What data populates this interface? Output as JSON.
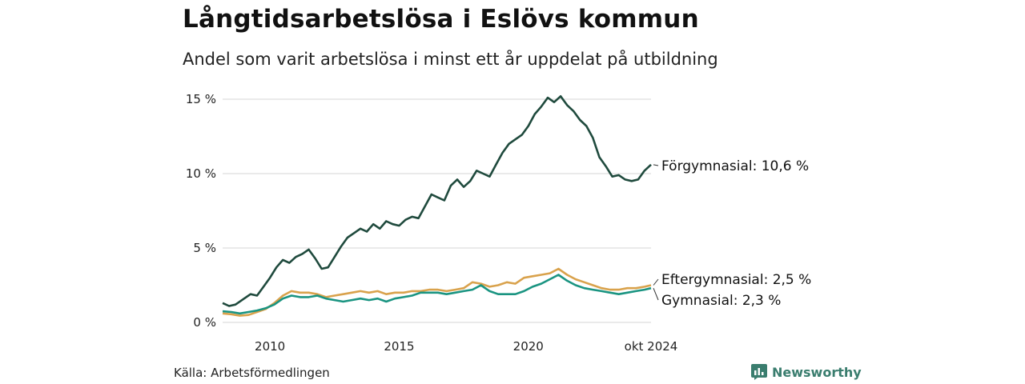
{
  "header": {
    "title": "Långtidsarbetslösa i Eslövs kommun",
    "subtitle": "Andel som varit arbetslösa i minst ett år uppdelat på utbildning"
  },
  "footer": {
    "source": "Källa: Arbetsförmedlingen",
    "brand": "Newsworthy",
    "brand_icon": "bar-chart-logo-icon"
  },
  "colors": {
    "forgymnasial": "#1f4a3d",
    "gymnasial": "#1a9481",
    "eftergymnasial": "#d9a24c",
    "grid": "#dddddd",
    "brand": "#3a7d6e"
  },
  "chart_data": {
    "type": "line",
    "x_start": "2008-03",
    "x_end": "2024-10",
    "ylim": [
      0,
      15
    ],
    "y_ticks": [
      {
        "value": 0,
        "label": "0 %"
      },
      {
        "value": 5,
        "label": "5 %"
      },
      {
        "value": 10,
        "label": "10 %"
      },
      {
        "value": 15,
        "label": "15 %"
      }
    ],
    "x_ticks": [
      {
        "value": "2010-01",
        "label": "2010"
      },
      {
        "value": "2015-01",
        "label": "2015"
      },
      {
        "value": "2020-01",
        "label": "2020"
      },
      {
        "value": "2024-10",
        "label": "okt 2024"
      }
    ],
    "grid": "horizontal",
    "series": [
      {
        "name": "Förgymnasial",
        "end_label": "Förgymnasial: 10,6 %",
        "color": "#1f4a3d",
        "points": [
          [
            "2008-03",
            1.3
          ],
          [
            "2008-06",
            1.1
          ],
          [
            "2008-09",
            1.2
          ],
          [
            "2009-01",
            1.6
          ],
          [
            "2009-04",
            1.9
          ],
          [
            "2009-07",
            1.8
          ],
          [
            "2009-10",
            2.4
          ],
          [
            "2010-01",
            3.0
          ],
          [
            "2010-04",
            3.7
          ],
          [
            "2010-07",
            4.2
          ],
          [
            "2010-10",
            4.0
          ],
          [
            "2011-01",
            4.4
          ],
          [
            "2011-04",
            4.6
          ],
          [
            "2011-07",
            4.9
          ],
          [
            "2011-10",
            4.3
          ],
          [
            "2012-01",
            3.6
          ],
          [
            "2012-04",
            3.7
          ],
          [
            "2012-07",
            4.4
          ],
          [
            "2012-10",
            5.1
          ],
          [
            "2013-01",
            5.7
          ],
          [
            "2013-04",
            6.0
          ],
          [
            "2013-07",
            6.3
          ],
          [
            "2013-10",
            6.1
          ],
          [
            "2014-01",
            6.6
          ],
          [
            "2014-04",
            6.3
          ],
          [
            "2014-07",
            6.8
          ],
          [
            "2014-10",
            6.6
          ],
          [
            "2015-01",
            6.5
          ],
          [
            "2015-04",
            6.9
          ],
          [
            "2015-07",
            7.1
          ],
          [
            "2015-10",
            7.0
          ],
          [
            "2016-01",
            7.8
          ],
          [
            "2016-04",
            8.6
          ],
          [
            "2016-07",
            8.4
          ],
          [
            "2016-10",
            8.2
          ],
          [
            "2017-01",
            9.2
          ],
          [
            "2017-04",
            9.6
          ],
          [
            "2017-07",
            9.1
          ],
          [
            "2017-10",
            9.5
          ],
          [
            "2018-01",
            10.2
          ],
          [
            "2018-04",
            10.0
          ],
          [
            "2018-07",
            9.8
          ],
          [
            "2018-10",
            10.6
          ],
          [
            "2019-01",
            11.4
          ],
          [
            "2019-04",
            12.0
          ],
          [
            "2019-07",
            12.3
          ],
          [
            "2019-10",
            12.6
          ],
          [
            "2020-01",
            13.2
          ],
          [
            "2020-04",
            14.0
          ],
          [
            "2020-07",
            14.5
          ],
          [
            "2020-10",
            15.1
          ],
          [
            "2021-01",
            14.8
          ],
          [
            "2021-04",
            15.2
          ],
          [
            "2021-07",
            14.6
          ],
          [
            "2021-10",
            14.2
          ],
          [
            "2022-01",
            13.6
          ],
          [
            "2022-04",
            13.2
          ],
          [
            "2022-07",
            12.4
          ],
          [
            "2022-10",
            11.1
          ],
          [
            "2023-01",
            10.5
          ],
          [
            "2023-04",
            9.8
          ],
          [
            "2023-07",
            9.9
          ],
          [
            "2023-10",
            9.6
          ],
          [
            "2024-01",
            9.5
          ],
          [
            "2024-04",
            9.6
          ],
          [
            "2024-07",
            10.2
          ],
          [
            "2024-10",
            10.6
          ]
        ]
      },
      {
        "name": "Eftergymnasial",
        "end_label": "Eftergymnasial:  2,5 %",
        "color": "#d9a24c",
        "points": [
          [
            "2008-03",
            0.6
          ],
          [
            "2008-07",
            0.55
          ],
          [
            "2008-11",
            0.45
          ],
          [
            "2009-03",
            0.5
          ],
          [
            "2009-07",
            0.7
          ],
          [
            "2009-11",
            0.9
          ],
          [
            "2010-03",
            1.3
          ],
          [
            "2010-07",
            1.8
          ],
          [
            "2010-11",
            2.1
          ],
          [
            "2011-03",
            2.0
          ],
          [
            "2011-07",
            2.0
          ],
          [
            "2011-11",
            1.9
          ],
          [
            "2012-03",
            1.7
          ],
          [
            "2012-07",
            1.8
          ],
          [
            "2012-11",
            1.9
          ],
          [
            "2013-03",
            2.0
          ],
          [
            "2013-07",
            2.1
          ],
          [
            "2013-11",
            2.0
          ],
          [
            "2014-03",
            2.1
          ],
          [
            "2014-07",
            1.9
          ],
          [
            "2014-11",
            2.0
          ],
          [
            "2015-03",
            2.0
          ],
          [
            "2015-07",
            2.1
          ],
          [
            "2015-11",
            2.1
          ],
          [
            "2016-03",
            2.2
          ],
          [
            "2016-07",
            2.2
          ],
          [
            "2016-11",
            2.1
          ],
          [
            "2017-03",
            2.2
          ],
          [
            "2017-07",
            2.3
          ],
          [
            "2017-11",
            2.7
          ],
          [
            "2018-03",
            2.6
          ],
          [
            "2018-07",
            2.4
          ],
          [
            "2018-11",
            2.5
          ],
          [
            "2019-03",
            2.7
          ],
          [
            "2019-07",
            2.6
          ],
          [
            "2019-11",
            3.0
          ],
          [
            "2020-03",
            3.1
          ],
          [
            "2020-07",
            3.2
          ],
          [
            "2020-11",
            3.3
          ],
          [
            "2021-03",
            3.6
          ],
          [
            "2021-07",
            3.2
          ],
          [
            "2021-11",
            2.9
          ],
          [
            "2022-03",
            2.7
          ],
          [
            "2022-07",
            2.5
          ],
          [
            "2022-11",
            2.3
          ],
          [
            "2023-03",
            2.2
          ],
          [
            "2023-07",
            2.2
          ],
          [
            "2023-11",
            2.3
          ],
          [
            "2024-03",
            2.3
          ],
          [
            "2024-07",
            2.4
          ],
          [
            "2024-10",
            2.5
          ]
        ]
      },
      {
        "name": "Gymnasial",
        "end_label": "Gymnasial:  2,3 %",
        "color": "#1a9481",
        "points": [
          [
            "2008-03",
            0.75
          ],
          [
            "2008-07",
            0.7
          ],
          [
            "2008-11",
            0.6
          ],
          [
            "2009-03",
            0.7
          ],
          [
            "2009-07",
            0.8
          ],
          [
            "2009-11",
            0.95
          ],
          [
            "2010-03",
            1.2
          ],
          [
            "2010-07",
            1.6
          ],
          [
            "2010-11",
            1.8
          ],
          [
            "2011-03",
            1.7
          ],
          [
            "2011-07",
            1.7
          ],
          [
            "2011-11",
            1.8
          ],
          [
            "2012-03",
            1.6
          ],
          [
            "2012-07",
            1.5
          ],
          [
            "2012-11",
            1.4
          ],
          [
            "2013-03",
            1.5
          ],
          [
            "2013-07",
            1.6
          ],
          [
            "2013-11",
            1.5
          ],
          [
            "2014-03",
            1.6
          ],
          [
            "2014-07",
            1.4
          ],
          [
            "2014-11",
            1.6
          ],
          [
            "2015-03",
            1.7
          ],
          [
            "2015-07",
            1.8
          ],
          [
            "2015-11",
            2.0
          ],
          [
            "2016-03",
            2.0
          ],
          [
            "2016-07",
            2.0
          ],
          [
            "2016-11",
            1.9
          ],
          [
            "2017-03",
            2.0
          ],
          [
            "2017-07",
            2.1
          ],
          [
            "2017-11",
            2.2
          ],
          [
            "2018-03",
            2.5
          ],
          [
            "2018-07",
            2.1
          ],
          [
            "2018-11",
            1.9
          ],
          [
            "2019-03",
            1.9
          ],
          [
            "2019-07",
            1.9
          ],
          [
            "2019-11",
            2.1
          ],
          [
            "2020-03",
            2.4
          ],
          [
            "2020-07",
            2.6
          ],
          [
            "2020-11",
            2.9
          ],
          [
            "2021-03",
            3.2
          ],
          [
            "2021-07",
            2.8
          ],
          [
            "2021-11",
            2.5
          ],
          [
            "2022-03",
            2.3
          ],
          [
            "2022-07",
            2.2
          ],
          [
            "2022-11",
            2.1
          ],
          [
            "2023-03",
            2.0
          ],
          [
            "2023-07",
            1.9
          ],
          [
            "2023-11",
            2.0
          ],
          [
            "2024-03",
            2.1
          ],
          [
            "2024-07",
            2.2
          ],
          [
            "2024-10",
            2.3
          ]
        ]
      }
    ]
  }
}
